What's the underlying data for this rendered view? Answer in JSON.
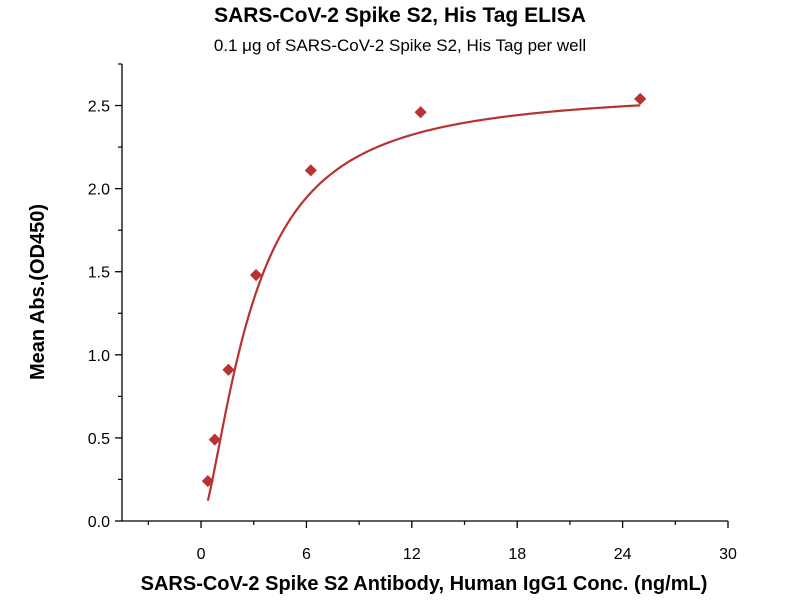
{
  "chart_data": {
    "type": "scatter",
    "title": "SARS-CoV-2 Spike S2, His Tag ELISA",
    "subtitle": "0.1 μg of SARS-CoV-2 Spike S2, His Tag per well",
    "xlabel": "SARS-CoV-2 Spike S2 Antibody, Human IgG1 Conc. (ng/mL)",
    "ylabel": "Mean Abs.(OD450)",
    "xlim": [
      -4.5,
      30
    ],
    "ylim": [
      0,
      2.75
    ],
    "x_ticks": [
      0,
      6,
      12,
      18,
      24,
      30
    ],
    "y_ticks": [
      0.0,
      0.5,
      1.0,
      1.5,
      2.0,
      2.5
    ],
    "y_tick_labels": [
      "0.0",
      "0.5",
      "1.0",
      "1.5",
      "2.0",
      "2.5"
    ],
    "grid": false,
    "series": [
      {
        "color": "#b83232",
        "marker": "diamond",
        "points": [
          {
            "x": 0.39,
            "y": 0.24
          },
          {
            "x": 0.78,
            "y": 0.49
          },
          {
            "x": 1.56,
            "y": 0.91
          },
          {
            "x": 3.13,
            "y": 1.48
          },
          {
            "x": 6.25,
            "y": 2.11
          },
          {
            "x": 12.5,
            "y": 2.46
          },
          {
            "x": 25,
            "y": 2.54
          }
        ]
      }
    ],
    "fit_curve": {
      "type": "4PL",
      "bottom": 0.0,
      "top": 2.6,
      "ec50": 2.9,
      "hill": 1.5
    }
  }
}
